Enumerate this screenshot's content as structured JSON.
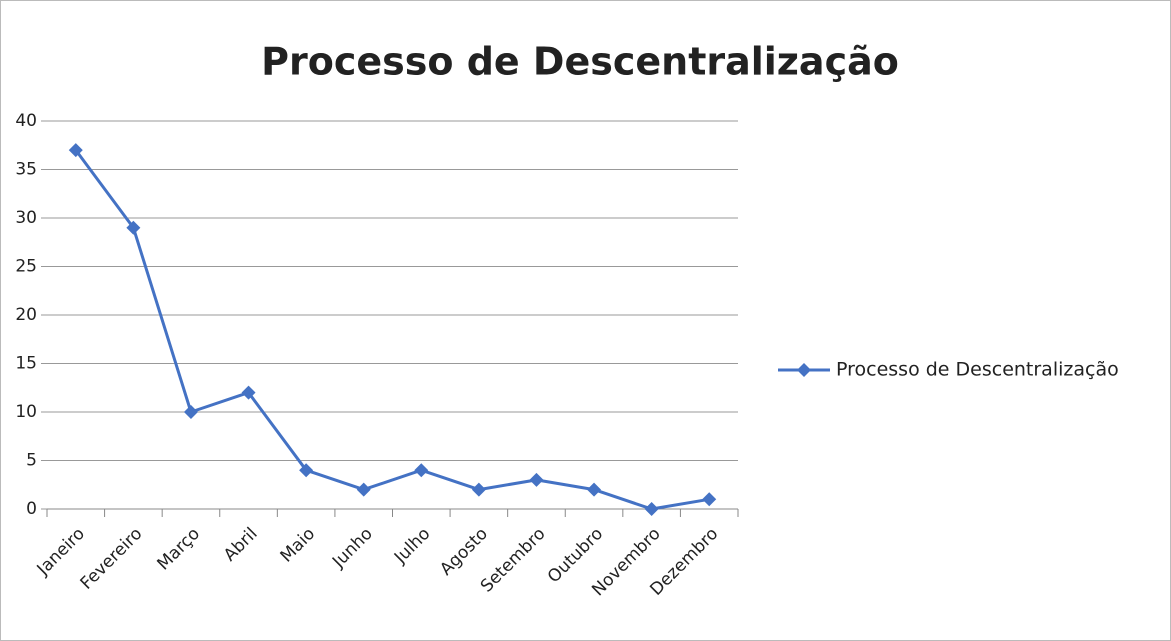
{
  "chart_data": {
    "type": "line",
    "title": "Processo de Descentralização",
    "categories": [
      "Janeiro",
      "Fevereiro",
      "Março",
      "Abril",
      "Maio",
      "Junho",
      "Julho",
      "Agosto",
      "Setembro",
      "Outubro",
      "Novembro",
      "Dezembro"
    ],
    "series": [
      {
        "name": "Processo de Descentralização",
        "color": "#4472c4",
        "values": [
          37,
          29,
          10,
          12,
          4,
          2,
          4,
          2,
          3,
          2,
          0,
          1
        ]
      }
    ],
    "ylim": [
      0,
      40
    ],
    "yticks": [
      0,
      5,
      10,
      15,
      20,
      25,
      30,
      35,
      40
    ],
    "grid": true,
    "legend": "right"
  }
}
